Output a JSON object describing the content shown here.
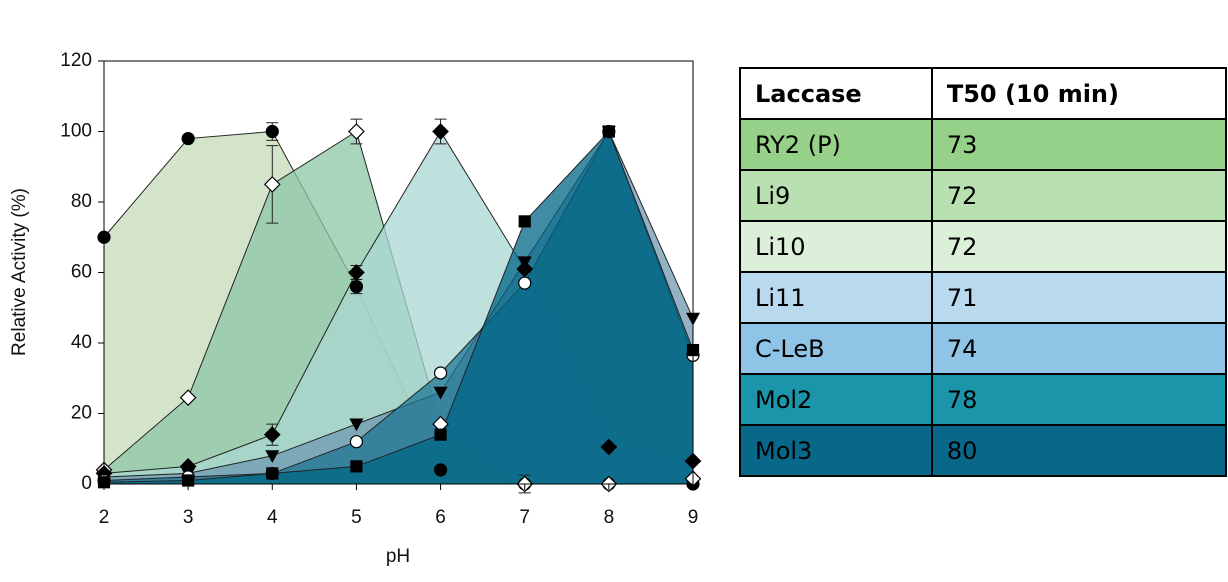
{
  "chart_data": {
    "type": "area",
    "y_label": "Relative Activity (%)",
    "x_label": "pH",
    "x": [
      2,
      3,
      4,
      5,
      6,
      7,
      8,
      9
    ],
    "xlim": [
      2,
      9
    ],
    "xticks": [
      2,
      3,
      4,
      5,
      6,
      7,
      8,
      9
    ],
    "ylim": [
      0,
      120
    ],
    "yticks": [
      0,
      20,
      40,
      60,
      80,
      100,
      120
    ],
    "series": [
      {
        "color": "#c5dbb9",
        "marker": "circle",
        "marker_color": "#000000",
        "values": [
          70,
          98,
          100,
          56,
          4,
          0,
          0,
          0
        ],
        "errors": [
          null,
          null,
          2.5,
          2,
          null,
          null,
          null,
          null
        ]
      },
      {
        "color": "#8cc7a6",
        "marker": "diamond",
        "marker_color": "#ffffff",
        "values": [
          4,
          24.5,
          85,
          100,
          17,
          0,
          0,
          1.5
        ],
        "errors": [
          null,
          null,
          11,
          3.5,
          null,
          2.5,
          null,
          null
        ]
      },
      {
        "color": "#a9d7d3",
        "marker": "diamond",
        "marker_color": "#000000",
        "values": [
          3,
          5,
          14,
          60,
          100,
          61,
          10.5,
          6.5
        ],
        "errors": [
          null,
          null,
          3,
          2,
          3.5,
          null,
          null,
          null
        ]
      },
      {
        "color": "#6f98b2",
        "marker": "triangle-down",
        "marker_color": "#000000",
        "values": [
          2,
          3,
          8,
          17,
          26,
          63,
          100,
          47
        ],
        "errors": [
          null,
          null,
          null,
          null,
          null,
          null,
          null,
          null
        ]
      },
      {
        "color": "#1f7594",
        "marker": "circle",
        "marker_color": "#ffffff",
        "values": [
          1,
          2,
          3,
          12,
          31.5,
          57,
          100,
          36.5
        ],
        "errors": [
          null,
          null,
          null,
          null,
          null,
          null,
          null,
          null
        ]
      },
      {
        "color": "#006685",
        "marker": "square",
        "marker_color": "#000000",
        "values": [
          0.5,
          1,
          3,
          5,
          14,
          74.5,
          100,
          38
        ],
        "errors": [
          null,
          null,
          null,
          null,
          null,
          null,
          null,
          null
        ]
      }
    ]
  },
  "table": {
    "header": [
      "Laccase",
      "T50 (10 min)"
    ],
    "rows": [
      [
        "RY2 (P)",
        "73"
      ],
      [
        "Li9",
        "72"
      ],
      [
        "Li10",
        "72"
      ],
      [
        "Li11",
        "71"
      ],
      [
        "C-LeB",
        "74"
      ],
      [
        "Mol2",
        "78"
      ],
      [
        "Mol3",
        "80"
      ]
    ],
    "row_colors": [
      "#96d18a",
      "#b9e0b1",
      "#dcefd9",
      "#b9d9ef",
      "#8fc4e7",
      "#1c95ab",
      "#08688a"
    ]
  }
}
